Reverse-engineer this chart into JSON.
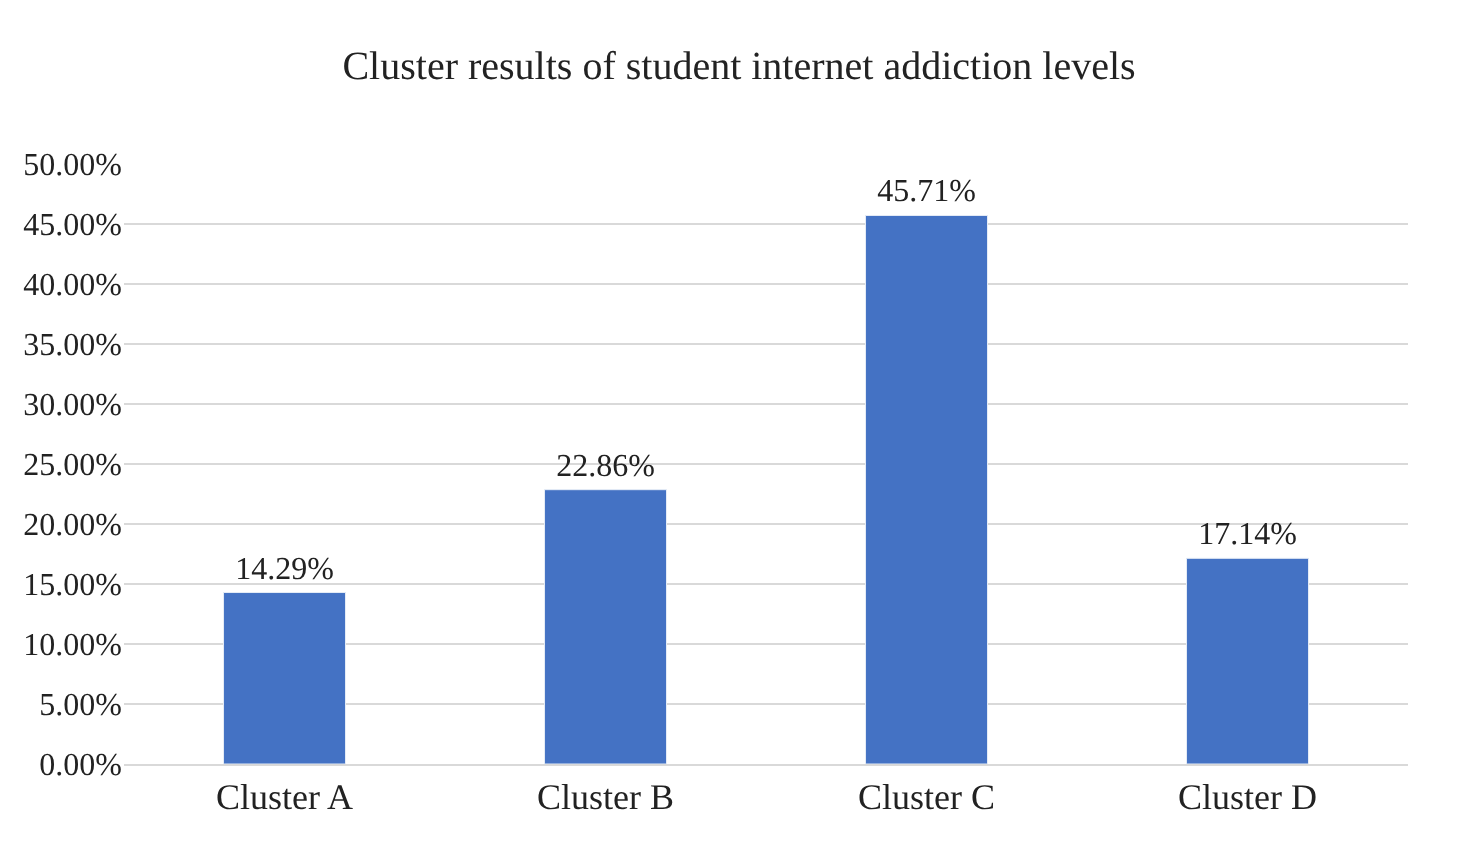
{
  "chart_data": {
    "type": "bar",
    "title": "Cluster results of student internet addiction levels",
    "categories": [
      "Cluster A",
      "Cluster B",
      "Cluster C",
      "Cluster D"
    ],
    "values": [
      14.29,
      22.86,
      45.71,
      17.14
    ],
    "value_labels": [
      "14.29%",
      "22.86%",
      "45.71%",
      "17.14%"
    ],
    "color": "#4472c4",
    "ylim": [
      0,
      50
    ],
    "yticks": [
      {
        "value": 0,
        "label": "0.00%"
      },
      {
        "value": 5,
        "label": "5.00%"
      },
      {
        "value": 10,
        "label": "10.00%"
      },
      {
        "value": 15,
        "label": "15.00%"
      },
      {
        "value": 20,
        "label": "20.00%"
      },
      {
        "value": 25,
        "label": "25.00%"
      },
      {
        "value": 30,
        "label": "30.00%"
      },
      {
        "value": 35,
        "label": "35.00%"
      },
      {
        "value": 40,
        "label": "40.00%"
      },
      {
        "value": 45,
        "label": "45.00%"
      },
      {
        "value": 50,
        "label": "50.00%"
      }
    ],
    "grid": "y",
    "legend": false
  }
}
